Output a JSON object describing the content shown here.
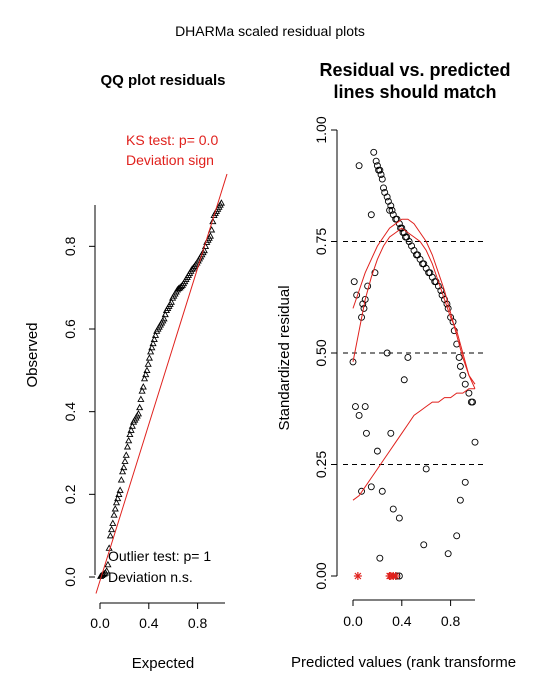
{
  "figure_title": "DHARMa scaled residual plots",
  "colors": {
    "red": "#e0211d",
    "black": "#000000"
  },
  "chart_data": [
    {
      "type": "scatter",
      "title": "QQ plot residuals",
      "xlabel": "Expected",
      "ylabel": "Observed",
      "xticks": [
        "0.0",
        "0.4",
        "0.8"
      ],
      "yticks": [
        "0.0",
        "0.2",
        "0.4",
        "0.6",
        "0.8"
      ],
      "xlim": [
        0,
        1
      ],
      "ylim": [
        0,
        0.9
      ],
      "marker": "triangle",
      "reference_line": {
        "from": [
          0,
          0
        ],
        "to": [
          1,
          1
        ],
        "color": "#e0211d"
      },
      "annotations": {
        "ks_line1": "KS test: p= 0.0",
        "ks_line2": "Deviation  sign",
        "outlier_line1": "Outlier test: p= 1",
        "outlier_line2": "Deviation  n.s."
      },
      "x": [
        0.005,
        0.015,
        0.025,
        0.035,
        0.045,
        0.055,
        0.065,
        0.075,
        0.085,
        0.095,
        0.105,
        0.115,
        0.125,
        0.135,
        0.145,
        0.155,
        0.165,
        0.175,
        0.185,
        0.195,
        0.205,
        0.215,
        0.225,
        0.235,
        0.245,
        0.255,
        0.265,
        0.275,
        0.285,
        0.295,
        0.305,
        0.315,
        0.325,
        0.335,
        0.345,
        0.355,
        0.365,
        0.375,
        0.385,
        0.395,
        0.405,
        0.415,
        0.425,
        0.435,
        0.445,
        0.455,
        0.465,
        0.475,
        0.485,
        0.495,
        0.505,
        0.515,
        0.525,
        0.535,
        0.545,
        0.555,
        0.565,
        0.575,
        0.585,
        0.595,
        0.605,
        0.615,
        0.625,
        0.635,
        0.645,
        0.655,
        0.665,
        0.675,
        0.685,
        0.695,
        0.705,
        0.715,
        0.725,
        0.735,
        0.745,
        0.755,
        0.765,
        0.775,
        0.785,
        0.795,
        0.805,
        0.815,
        0.825,
        0.835,
        0.845,
        0.855,
        0.865,
        0.875,
        0.885,
        0.895,
        0.905,
        0.915,
        0.925,
        0.935,
        0.945,
        0.955,
        0.965,
        0.975,
        0.985,
        0.995
      ],
      "y": [
        0.002,
        0.004,
        0.006,
        0.008,
        0.01,
        0.015,
        0.03,
        0.07,
        0.1,
        0.115,
        0.13,
        0.15,
        0.165,
        0.18,
        0.19,
        0.2,
        0.21,
        0.235,
        0.255,
        0.265,
        0.28,
        0.295,
        0.315,
        0.33,
        0.345,
        0.355,
        0.365,
        0.375,
        0.38,
        0.385,
        0.39,
        0.395,
        0.41,
        0.43,
        0.45,
        0.46,
        0.48,
        0.49,
        0.5,
        0.515,
        0.53,
        0.545,
        0.555,
        0.565,
        0.575,
        0.585,
        0.595,
        0.6,
        0.605,
        0.61,
        0.615,
        0.62,
        0.625,
        0.635,
        0.645,
        0.65,
        0.655,
        0.66,
        0.665,
        0.675,
        0.68,
        0.685,
        0.69,
        0.695,
        0.698,
        0.7,
        0.703,
        0.706,
        0.71,
        0.715,
        0.72,
        0.725,
        0.73,
        0.735,
        0.74,
        0.745,
        0.748,
        0.752,
        0.756,
        0.76,
        0.765,
        0.77,
        0.775,
        0.78,
        0.785,
        0.79,
        0.8,
        0.81,
        0.815,
        0.82,
        0.825,
        0.84,
        0.86,
        0.875,
        0.88,
        0.885,
        0.89,
        0.895,
        0.9,
        0.905
      ]
    },
    {
      "type": "scatter",
      "title": "Residual vs. predicted\nlines should match",
      "xlabel": "Predicted values (rank transforme",
      "ylabel": "Standardized residual",
      "xticks": [
        "0.0",
        "0.4",
        "0.8"
      ],
      "yticks": [
        "0.00",
        "0.25",
        "0.50",
        "0.75",
        "1.00"
      ],
      "xlim": [
        0,
        1
      ],
      "ylim": [
        0,
        1
      ],
      "marker": "circle",
      "hlines": [
        0.25,
        0.5,
        0.75
      ],
      "x": [
        0.0,
        0.01,
        0.02,
        0.03,
        0.05,
        0.07,
        0.08,
        0.09,
        0.1,
        0.11,
        0.12,
        0.15,
        0.17,
        0.18,
        0.19,
        0.2,
        0.21,
        0.22,
        0.23,
        0.24,
        0.25,
        0.26,
        0.28,
        0.29,
        0.3,
        0.31,
        0.32,
        0.33,
        0.35,
        0.36,
        0.38,
        0.39,
        0.4,
        0.41,
        0.42,
        0.43,
        0.44,
        0.46,
        0.48,
        0.5,
        0.52,
        0.53,
        0.55,
        0.57,
        0.58,
        0.6,
        0.62,
        0.63,
        0.65,
        0.67,
        0.68,
        0.7,
        0.72,
        0.73,
        0.75,
        0.77,
        0.78,
        0.8,
        0.82,
        0.83,
        0.85,
        0.87,
        0.88,
        0.9,
        0.92,
        0.95,
        0.97,
        0.98,
        1.0,
        0.2,
        0.24,
        0.33,
        0.05,
        0.15,
        0.42,
        0.6,
        0.78,
        0.85,
        0.1,
        0.07,
        0.28,
        0.45,
        0.88,
        0.92,
        0.58,
        0.38,
        0.31,
        0.22
      ],
      "y": [
        0.48,
        0.66,
        0.38,
        0.63,
        0.92,
        0.58,
        0.61,
        0.6,
        0.62,
        0.32,
        0.65,
        0.81,
        0.95,
        0.68,
        0.93,
        0.92,
        0.91,
        0.91,
        0.9,
        0.89,
        0.87,
        0.86,
        0.85,
        0.84,
        0.82,
        0.83,
        0.82,
        0.81,
        0.8,
        0.8,
        0.79,
        0.78,
        0.78,
        0.77,
        0.77,
        0.76,
        0.76,
        0.75,
        0.74,
        0.73,
        0.72,
        0.72,
        0.71,
        0.7,
        0.7,
        0.69,
        0.68,
        0.68,
        0.67,
        0.66,
        0.66,
        0.65,
        0.64,
        0.63,
        0.62,
        0.61,
        0.6,
        0.58,
        0.57,
        0.55,
        0.52,
        0.49,
        0.47,
        0.45,
        0.43,
        0.41,
        0.39,
        0.39,
        0.3,
        0.28,
        0.19,
        0.15,
        0.36,
        0.2,
        0.44,
        0.24,
        0.05,
        0.09,
        0.38,
        0.19,
        0.5,
        0.49,
        0.17,
        0.21,
        0.07,
        0.13,
        0.32,
        0.04
      ],
      "star_points": [
        [
          0.04,
          0.0
        ],
        [
          0.3,
          0.0
        ],
        [
          0.33,
          0.0
        ],
        [
          0.31,
          0.0
        ],
        [
          0.35,
          0.0
        ]
      ],
      "circle_at_zero": [
        0.36,
        0.38
      ],
      "curves": [
        {
          "color": "#e0211d",
          "x": [
            0.0,
            0.05,
            0.1,
            0.15,
            0.2,
            0.25,
            0.3,
            0.35,
            0.4,
            0.45,
            0.5,
            0.55,
            0.6,
            0.65,
            0.7,
            0.75,
            0.8,
            0.85,
            0.9,
            0.95,
            1.0
          ],
          "y": [
            0.6,
            0.64,
            0.68,
            0.71,
            0.74,
            0.76,
            0.78,
            0.79,
            0.8,
            0.8,
            0.79,
            0.77,
            0.75,
            0.72,
            0.68,
            0.64,
            0.59,
            0.54,
            0.49,
            0.45,
            0.42
          ]
        },
        {
          "color": "#e0211d",
          "x": [
            0.0,
            0.05,
            0.1,
            0.15,
            0.2,
            0.25,
            0.3,
            0.35,
            0.4,
            0.45,
            0.5,
            0.55,
            0.6,
            0.65,
            0.7,
            0.75,
            0.8,
            0.85,
            0.9,
            0.95,
            1.0
          ],
          "y": [
            0.48,
            0.55,
            0.62,
            0.67,
            0.71,
            0.74,
            0.76,
            0.77,
            0.78,
            0.77,
            0.76,
            0.75,
            0.73,
            0.7,
            0.66,
            0.62,
            0.58,
            0.55,
            0.5,
            0.45,
            0.43
          ]
        },
        {
          "color": "#e0211d",
          "x": [
            0.0,
            0.05,
            0.1,
            0.15,
            0.2,
            0.25,
            0.3,
            0.35,
            0.4,
            0.45,
            0.5,
            0.55,
            0.6,
            0.65,
            0.7,
            0.75,
            0.8,
            0.85,
            0.9,
            0.95,
            1.0
          ],
          "y": [
            0.17,
            0.18,
            0.2,
            0.22,
            0.24,
            0.26,
            0.28,
            0.3,
            0.32,
            0.34,
            0.36,
            0.37,
            0.38,
            0.39,
            0.39,
            0.4,
            0.4,
            0.41,
            0.41,
            0.42,
            0.42
          ]
        }
      ]
    }
  ]
}
